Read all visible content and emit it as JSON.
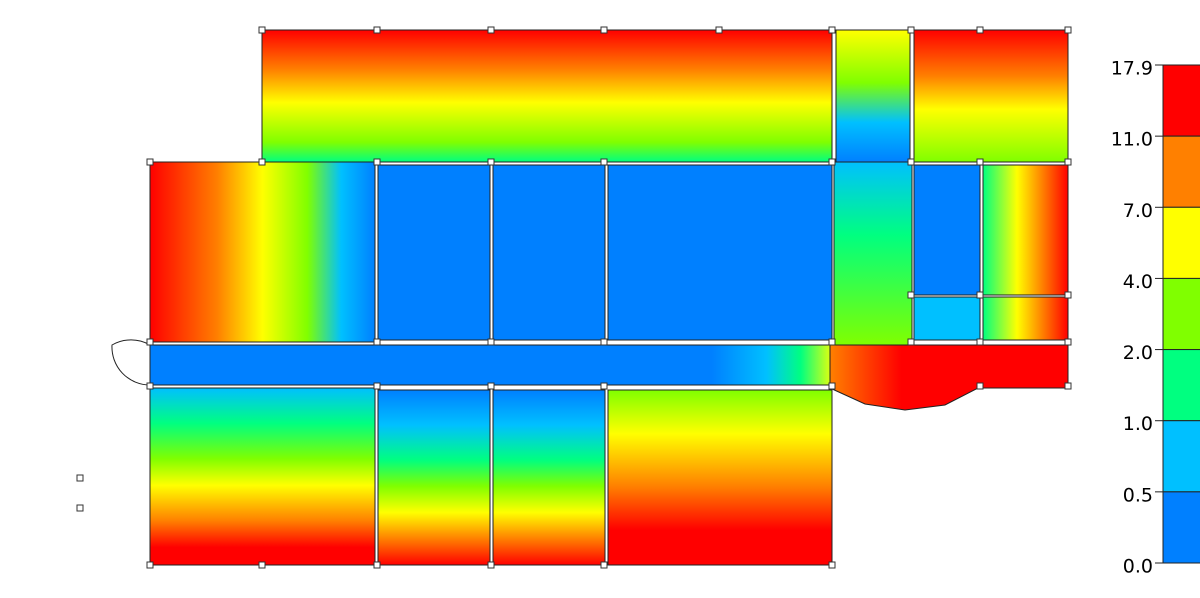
{
  "legend": {
    "labels": [
      "17.9",
      "11.0",
      "7.0",
      "4.0",
      "2.0",
      "1.0",
      "0.5",
      "0.0"
    ],
    "colors": [
      "#ff0000",
      "#ff8000",
      "#ffff00",
      "#80ff00",
      "#00ff80",
      "#00c0ff",
      "#0080ff"
    ]
  }
}
